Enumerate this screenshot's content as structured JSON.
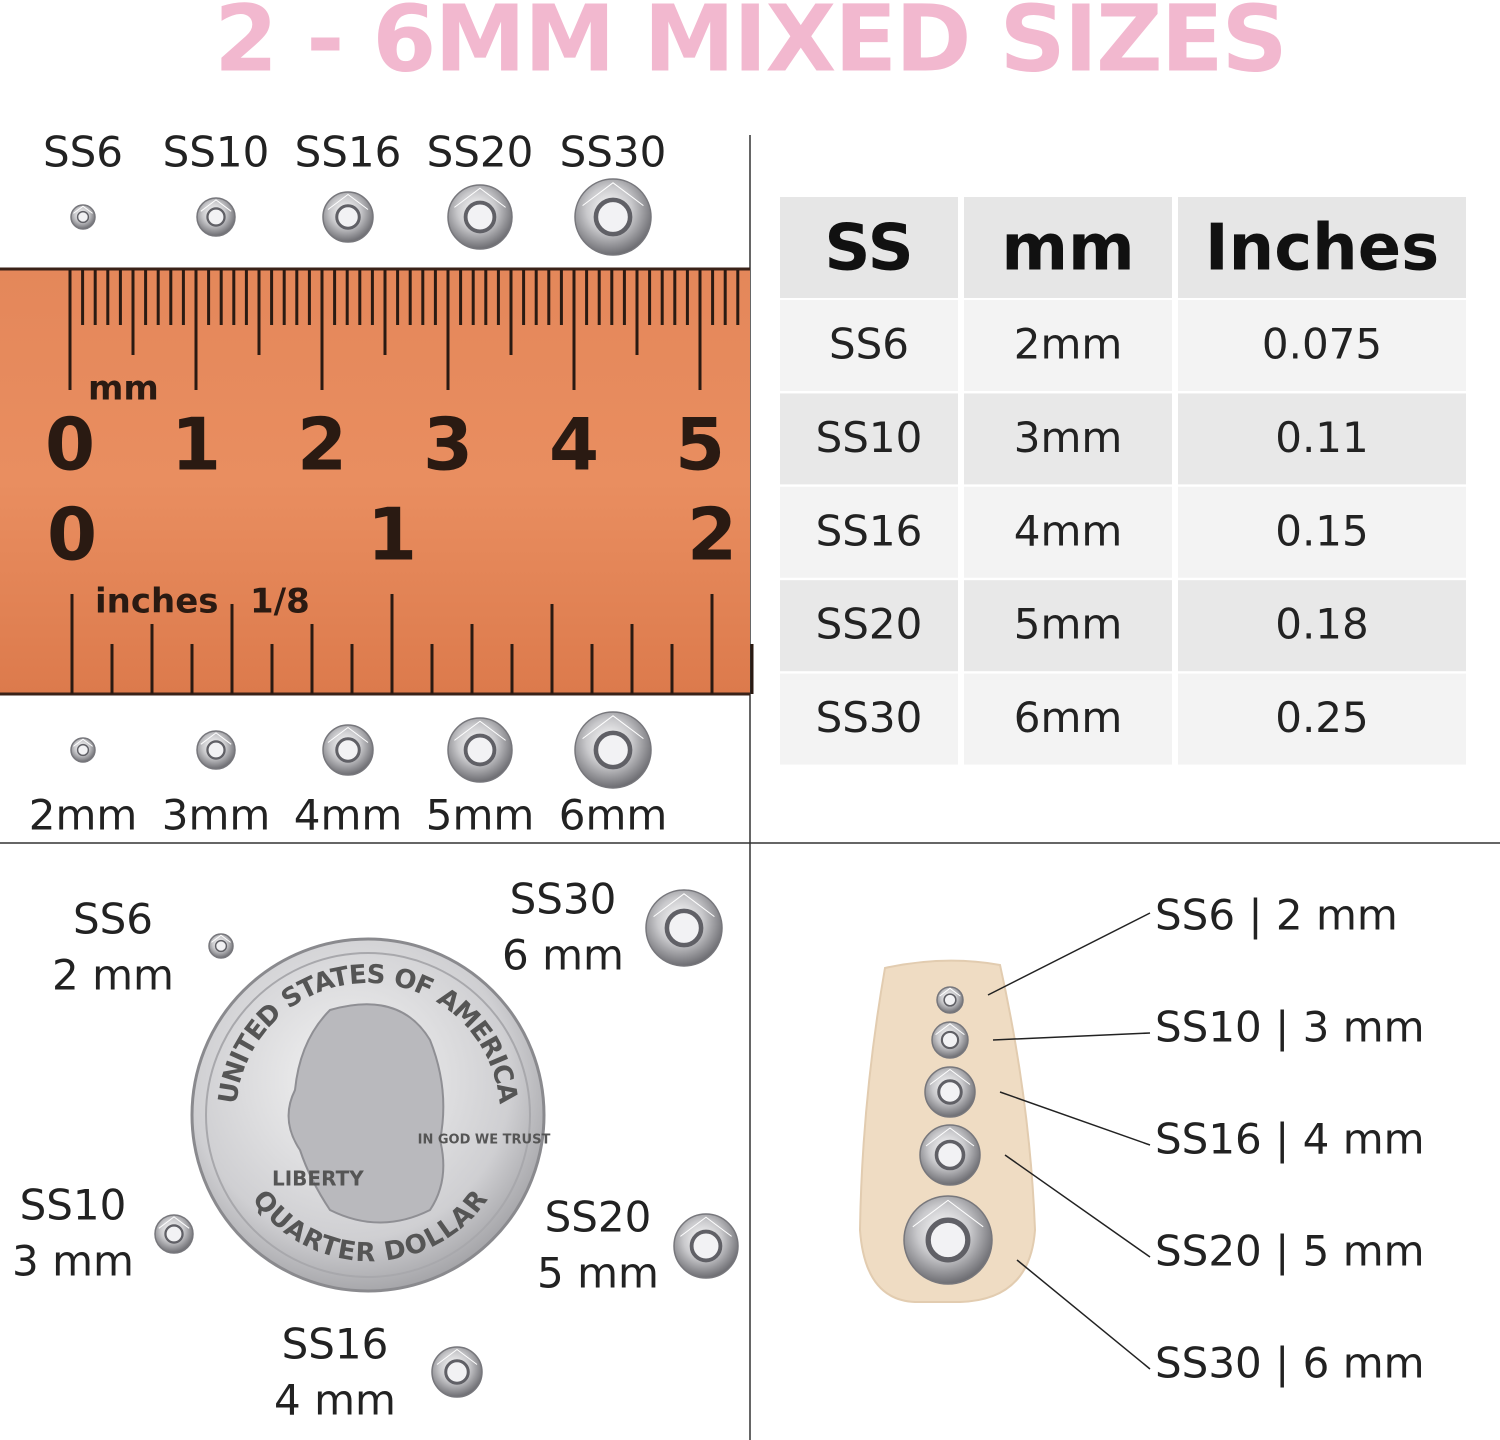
{
  "title": "2 - 6MM MIXED SIZES",
  "ruler_section": {
    "top_labels": [
      "SS6",
      "SS10",
      "SS16",
      "SS20",
      "SS30"
    ],
    "bottom_labels": [
      "2mm",
      "3mm",
      "4mm",
      "5mm",
      "6mm"
    ],
    "ruler": {
      "mm_label": "mm",
      "cm_numbers": [
        "0",
        "1",
        "2",
        "3",
        "4",
        "5"
      ],
      "inch_numbers": [
        "0",
        "1",
        "2"
      ],
      "inch_label": "inches",
      "fraction_label": "1/8"
    }
  },
  "table": {
    "header": [
      "SS",
      "mm",
      "Inches"
    ],
    "rows": [
      [
        "SS6",
        "2mm",
        "0.075"
      ],
      [
        "SS10",
        "3mm",
        "0.11"
      ],
      [
        "SS16",
        "4mm",
        "0.15"
      ],
      [
        "SS20",
        "5mm",
        "0.18"
      ],
      [
        "SS30",
        "6mm",
        "0.25"
      ]
    ]
  },
  "coin_section": {
    "labels": [
      {
        "size": "SS6",
        "mm": "2 mm"
      },
      {
        "size": "SS30",
        "mm": "6 mm"
      },
      {
        "size": "SS10",
        "mm": "3 mm"
      },
      {
        "size": "SS20",
        "mm": "5 mm"
      },
      {
        "size": "SS16",
        "mm": "4 mm"
      }
    ],
    "coin": {
      "top": "UNITED STATES OF AMERICA",
      "motto": "IN GOD WE TRUST",
      "liberty": "LIBERTY",
      "bottom": "QUARTER DOLLAR"
    }
  },
  "nail_section": {
    "labels": [
      "SS6 | 2 mm",
      "SS10 | 3 mm",
      "SS16 | 4 mm",
      "SS20 | 5 mm",
      "SS30 | 6 mm"
    ]
  }
}
